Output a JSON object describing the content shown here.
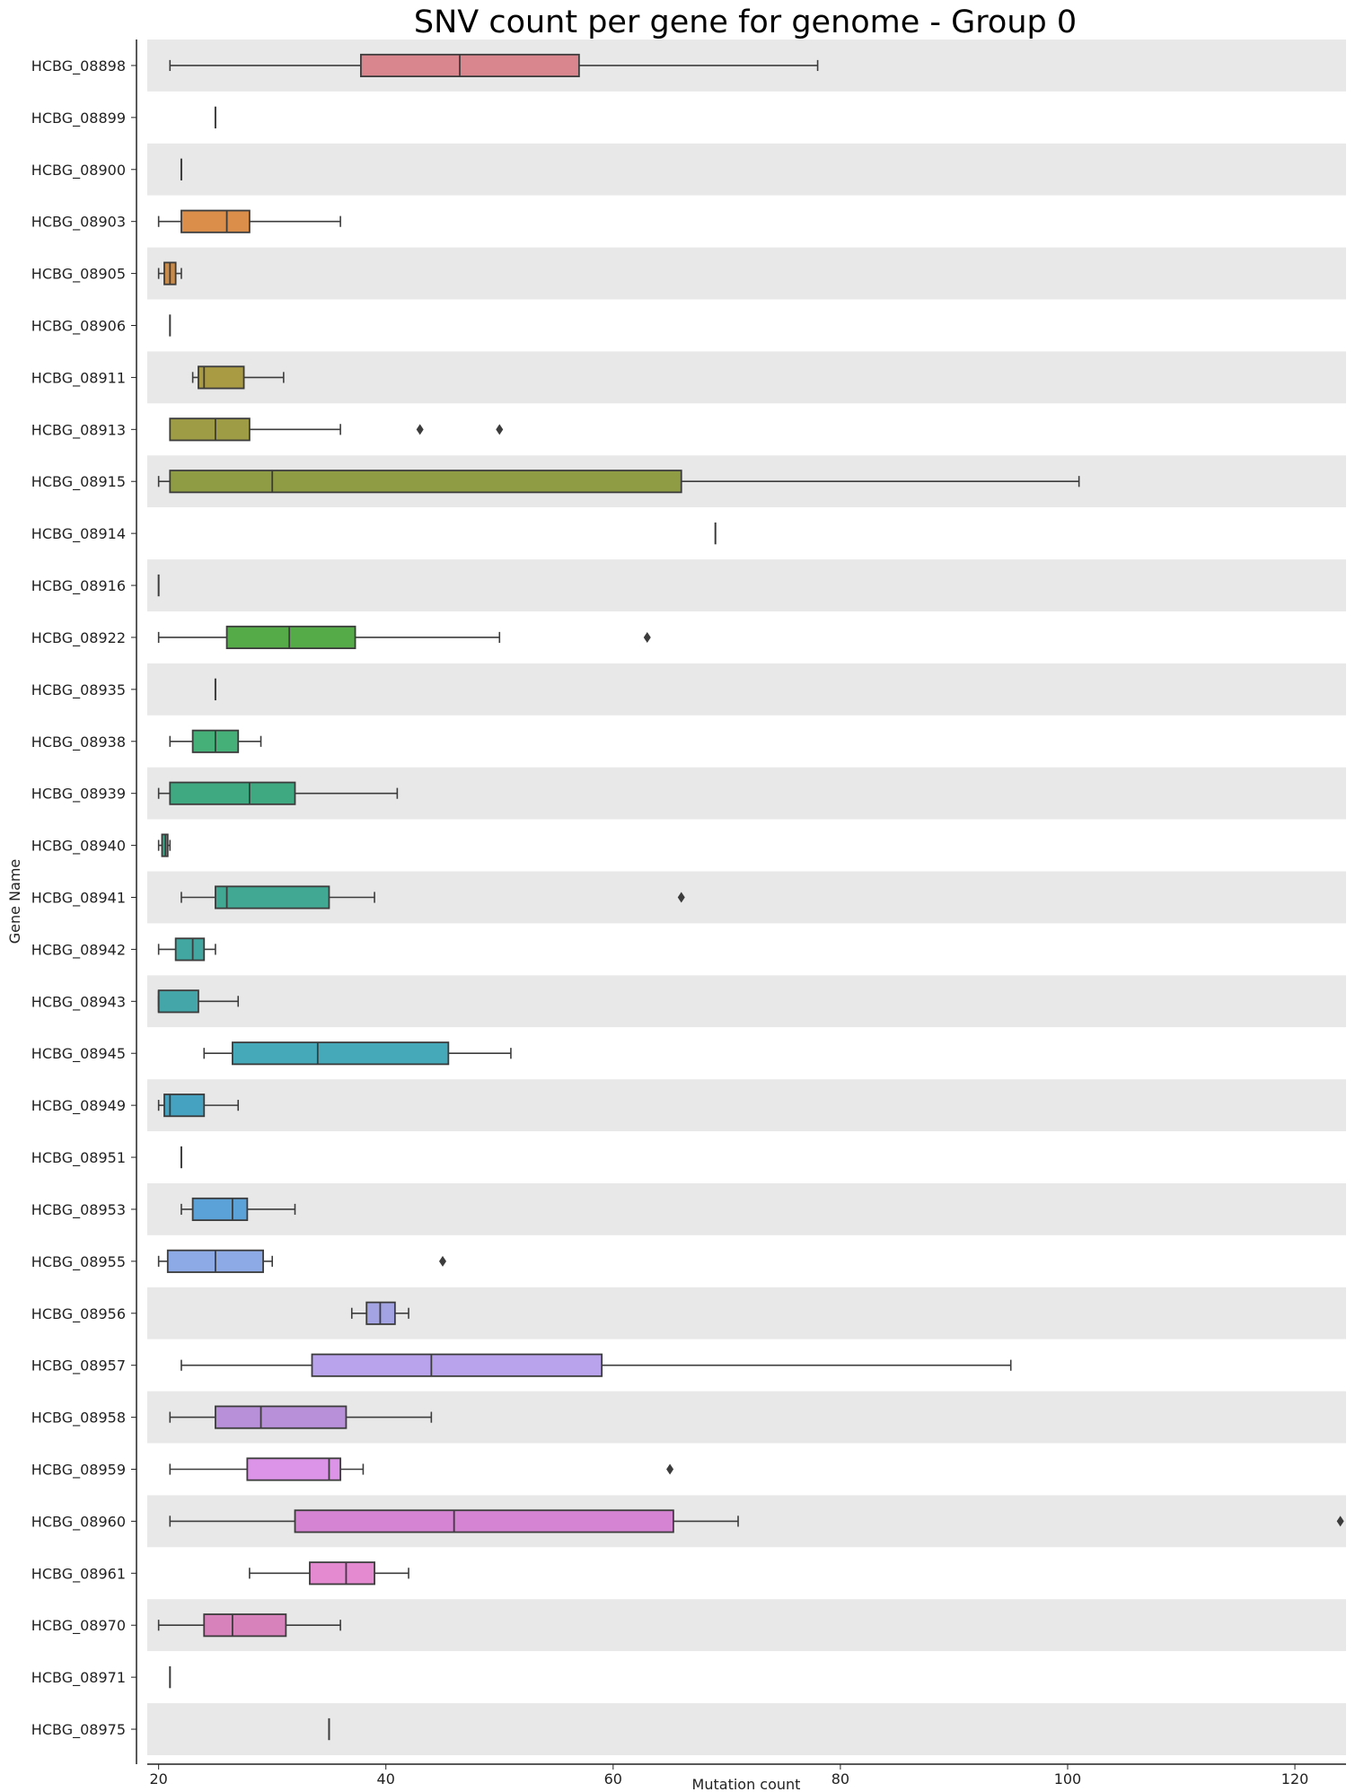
{
  "chart_data": {
    "type": "boxplot",
    "orientation": "horizontal",
    "title": "SNV count per gene for genome - Group 0",
    "xlabel": "Mutation count",
    "ylabel": "Gene Name",
    "xlim": [
      19,
      124.5
    ],
    "xticks": [
      20,
      40,
      60,
      80,
      100,
      120
    ],
    "row_bands": {
      "even": "#e8e8e8",
      "odd": "#ffffff"
    },
    "box_edge_color": "#3c3c3c",
    "categories": [
      "HCBG_08898",
      "HCBG_08899",
      "HCBG_08900",
      "HCBG_08903",
      "HCBG_08905",
      "HCBG_08906",
      "HCBG_08911",
      "HCBG_08913",
      "HCBG_08915",
      "HCBG_08914",
      "HCBG_08916",
      "HCBG_08922",
      "HCBG_08935",
      "HCBG_08938",
      "HCBG_08939",
      "HCBG_08940",
      "HCBG_08941",
      "HCBG_08942",
      "HCBG_08943",
      "HCBG_08945",
      "HCBG_08949",
      "HCBG_08951",
      "HCBG_08953",
      "HCBG_08955",
      "HCBG_08956",
      "HCBG_08957",
      "HCBG_08958",
      "HCBG_08959",
      "HCBG_08960",
      "HCBG_08961",
      "HCBG_08970",
      "HCBG_08971",
      "HCBG_08975"
    ],
    "boxes": [
      {
        "wlo": 21,
        "q1": 37.8,
        "med": 46.5,
        "q3": 57,
        "whi": 78,
        "outliers": [],
        "color": "#d9868f"
      },
      {
        "wlo": 25,
        "q1": 25,
        "med": 25,
        "q3": 25,
        "whi": 25,
        "outliers": [],
        "color": "#d9877a"
      },
      {
        "wlo": 22,
        "q1": 22,
        "med": 22,
        "q3": 22,
        "whi": 22,
        "outliers": [],
        "color": "#d98a5e"
      },
      {
        "wlo": 20,
        "q1": 22,
        "med": 26,
        "q3": 28,
        "whi": 36,
        "outliers": [],
        "color": "#da8e4a"
      },
      {
        "wlo": 20,
        "q1": 20.5,
        "med": 21,
        "q3": 21.5,
        "whi": 22,
        "outliers": [],
        "color": "#c98b4a"
      },
      {
        "wlo": 21,
        "q1": 21,
        "med": 21,
        "q3": 21,
        "whi": 21,
        "outliers": [],
        "color": "#b59344"
      },
      {
        "wlo": 23,
        "q1": 23.5,
        "med": 24,
        "q3": 27.5,
        "whi": 31,
        "outliers": [],
        "color": "#a99a44"
      },
      {
        "wlo": 21,
        "q1": 21,
        "med": 25,
        "q3": 28,
        "whi": 36,
        "outliers": [
          43,
          50
        ],
        "color": "#9e9c45"
      },
      {
        "wlo": 20,
        "q1": 21,
        "med": 30,
        "q3": 66,
        "whi": 101,
        "outliers": [],
        "color": "#8f9c43"
      },
      {
        "wlo": 69,
        "q1": 69,
        "med": 69,
        "q3": 69,
        "whi": 69,
        "outliers": [],
        "color": "#7f9e42"
      },
      {
        "wlo": 20,
        "q1": 20,
        "med": 20,
        "q3": 20,
        "whi": 20,
        "outliers": [],
        "color": "#6aa141"
      },
      {
        "wlo": 20,
        "q1": 26,
        "med": 31.5,
        "q3": 37.3,
        "whi": 50,
        "outliers": [
          63
        ],
        "color": "#55ab47"
      },
      {
        "wlo": 25,
        "q1": 25,
        "med": 25,
        "q3": 25,
        "whi": 25,
        "outliers": [],
        "color": "#4eae5e"
      },
      {
        "wlo": 21,
        "q1": 23,
        "med": 25,
        "q3": 27,
        "whi": 29,
        "outliers": [],
        "color": "#45b077"
      },
      {
        "wlo": 20,
        "q1": 21,
        "med": 28,
        "q3": 32,
        "whi": 41,
        "outliers": [],
        "color": "#3fa981"
      },
      {
        "wlo": 20,
        "q1": 20.3,
        "med": 20.6,
        "q3": 20.8,
        "whi": 21,
        "outliers": [],
        "color": "#3fa98a"
      },
      {
        "wlo": 22,
        "q1": 25,
        "med": 26,
        "q3": 35,
        "whi": 39,
        "outliers": [
          66
        ],
        "color": "#41a894"
      },
      {
        "wlo": 20,
        "q1": 21.5,
        "med": 23,
        "q3": 24,
        "whi": 25,
        "outliers": [],
        "color": "#42a7a0"
      },
      {
        "wlo": 20,
        "q1": 20,
        "med": 20,
        "q3": 23.5,
        "whi": 27,
        "outliers": [],
        "color": "#44a6a9"
      },
      {
        "wlo": 24,
        "q1": 26.5,
        "med": 34,
        "q3": 45.5,
        "whi": 51,
        "outliers": [],
        "color": "#45a9b9"
      },
      {
        "wlo": 20,
        "q1": 20.5,
        "med": 21,
        "q3": 24,
        "whi": 27,
        "outliers": [],
        "color": "#45a2c0"
      },
      {
        "wlo": 22,
        "q1": 22,
        "med": 22,
        "q3": 22,
        "whi": 22,
        "outliers": [],
        "color": "#4a9fc8"
      },
      {
        "wlo": 22,
        "q1": 23,
        "med": 26.5,
        "q3": 27.8,
        "whi": 32,
        "outliers": [],
        "color": "#5ba2d8"
      },
      {
        "wlo": 20,
        "q1": 20.8,
        "med": 25,
        "q3": 29.2,
        "whi": 30,
        "outliers": [
          45
        ],
        "color": "#8eaae6"
      },
      {
        "wlo": 37,
        "q1": 38.3,
        "med": 39.5,
        "q3": 40.8,
        "whi": 42,
        "outliers": [],
        "color": "#a3a3e3"
      },
      {
        "wlo": 22,
        "q1": 33.5,
        "med": 44,
        "q3": 59,
        "whi": 95,
        "outliers": [],
        "color": "#b8a3ec"
      },
      {
        "wlo": 21,
        "q1": 25,
        "med": 29,
        "q3": 36.5,
        "whi": 44,
        "outliers": [],
        "color": "#b890d9"
      },
      {
        "wlo": 21,
        "q1": 27.8,
        "med": 35,
        "q3": 36,
        "whi": 38,
        "outliers": [
          65
        ],
        "color": "#dc94e8"
      },
      {
        "wlo": 21,
        "q1": 32,
        "med": 46,
        "q3": 65.3,
        "whi": 71,
        "outliers": [
          124
        ],
        "color": "#d484d2"
      },
      {
        "wlo": 28,
        "q1": 33.3,
        "med": 36.5,
        "q3": 39,
        "whi": 42,
        "outliers": [],
        "color": "#e38ad1"
      },
      {
        "wlo": 20,
        "q1": 24,
        "med": 26.5,
        "q3": 31.2,
        "whi": 36,
        "outliers": [],
        "color": "#d882bb"
      },
      {
        "wlo": 21,
        "q1": 21,
        "med": 21,
        "q3": 21,
        "whi": 21,
        "outliers": [],
        "color": "#d882b0"
      },
      {
        "wlo": 35,
        "q1": 35,
        "med": 35,
        "q3": 35,
        "whi": 35,
        "outliers": [],
        "color": "#d884a4"
      }
    ]
  }
}
